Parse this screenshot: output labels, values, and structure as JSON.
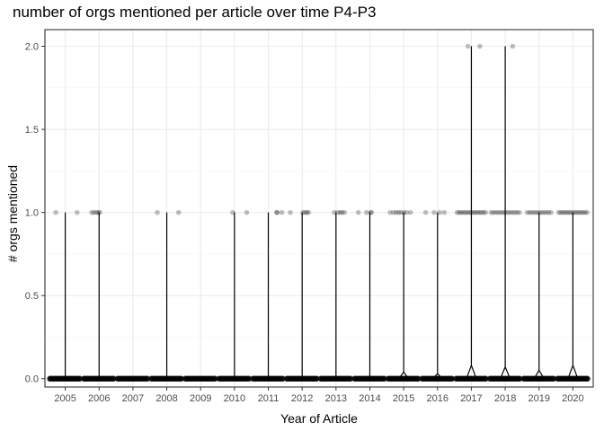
{
  "chart_data": {
    "type": "violin",
    "title": "number of orgs mentioned per article over time P4-P3",
    "xlabel": "Year of Article",
    "ylabel": "# orgs mentioned",
    "categories": [
      "2005",
      "2006",
      "2007",
      "2008",
      "2009",
      "2010",
      "2011",
      "2012",
      "2013",
      "2014",
      "2015",
      "2016",
      "2017",
      "2018",
      "2019",
      "2020"
    ],
    "ylim": [
      -0.05,
      2.1
    ],
    "yticks": [
      0.0,
      0.5,
      1.0,
      1.5,
      2.0
    ],
    "ytick_labels": [
      "0.0",
      "0.5",
      "1.0",
      "1.5",
      "2.0"
    ],
    "max_values": [
      1,
      1,
      0,
      1,
      0,
      1,
      1,
      1,
      1,
      1,
      1,
      1,
      2,
      2,
      1,
      1
    ],
    "bulge_at_zero": [
      0.0,
      0.01,
      0.0,
      0.0,
      0.0,
      0.0,
      0.0,
      0.01,
      0.01,
      0.01,
      0.04,
      0.03,
      0.08,
      0.07,
      0.05,
      0.08
    ],
    "jitter_points": [
      {
        "category": "2005",
        "x_offsets": [
          -0.28,
          0.35
        ],
        "y": 1
      },
      {
        "category": "2006",
        "x_offsets": [
          -0.22,
          -0.15,
          -0.08,
          -0.02,
          0.02
        ],
        "y": 1
      },
      {
        "category": "2008",
        "x_offsets": [
          -0.28,
          0.35
        ],
        "y": 1
      },
      {
        "category": "2010",
        "x_offsets": [
          -0.05,
          0.36
        ],
        "y": 1
      },
      {
        "category": "2011",
        "x_offsets": [
          0.25,
          0.26,
          0.4
        ],
        "y": 1
      },
      {
        "category": "2012",
        "x_offsets": [
          -0.35,
          0.02,
          0.08,
          0.14,
          0.19
        ],
        "y": 1
      },
      {
        "category": "2013",
        "x_offsets": [
          -0.05,
          0.05,
          0.12,
          0.18,
          0.25
        ],
        "y": 1
      },
      {
        "category": "2014",
        "x_offsets": [
          -0.34,
          -0.1,
          0.02,
          0.05
        ],
        "y": 1
      },
      {
        "category": "2015",
        "x_offsets": [
          -0.4,
          -0.3,
          -0.22,
          -0.15,
          -0.08,
          0.0,
          0.08,
          0.2
        ],
        "y": 1
      },
      {
        "category": "2016",
        "x_offsets": [
          -0.35,
          -0.1,
          0.06,
          0.2
        ],
        "y": 1
      },
      {
        "category": "2017",
        "x_offsets": [
          -0.42,
          -0.36,
          -0.3,
          -0.24,
          -0.18,
          -0.12,
          -0.06,
          0.0,
          0.06,
          0.12,
          0.18,
          0.24,
          0.3,
          0.36,
          0.42
        ],
        "y": 1
      },
      {
        "category": "2017",
        "x_offsets": [
          -0.1,
          0.25
        ],
        "y": 2
      },
      {
        "category": "2018",
        "x_offsets": [
          -0.42,
          -0.35,
          -0.28,
          -0.21,
          -0.14,
          -0.07,
          0.0,
          0.07,
          0.14,
          0.21,
          0.28,
          0.35,
          0.42
        ],
        "y": 1
      },
      {
        "category": "2018",
        "x_offsets": [
          0.22
        ],
        "y": 2
      },
      {
        "category": "2019",
        "x_offsets": [
          -0.35,
          -0.28,
          -0.21,
          -0.14,
          -0.07,
          0.0,
          0.07,
          0.14,
          0.21,
          0.28,
          0.35
        ],
        "y": 1
      },
      {
        "category": "2020",
        "x_offsets": [
          -0.42,
          -0.36,
          -0.3,
          -0.24,
          -0.18,
          -0.12,
          -0.06,
          0.0,
          0.06,
          0.12,
          0.18,
          0.24,
          0.3,
          0.36,
          0.42
        ],
        "y": 1
      }
    ],
    "zero_strip_categories_all": true,
    "grid": true,
    "colors": {
      "panel_border": "#333333",
      "grid_major": "#ebebeb",
      "grid_minor": "#f5f5f5",
      "violin": "#000000",
      "point": "#000000"
    }
  }
}
